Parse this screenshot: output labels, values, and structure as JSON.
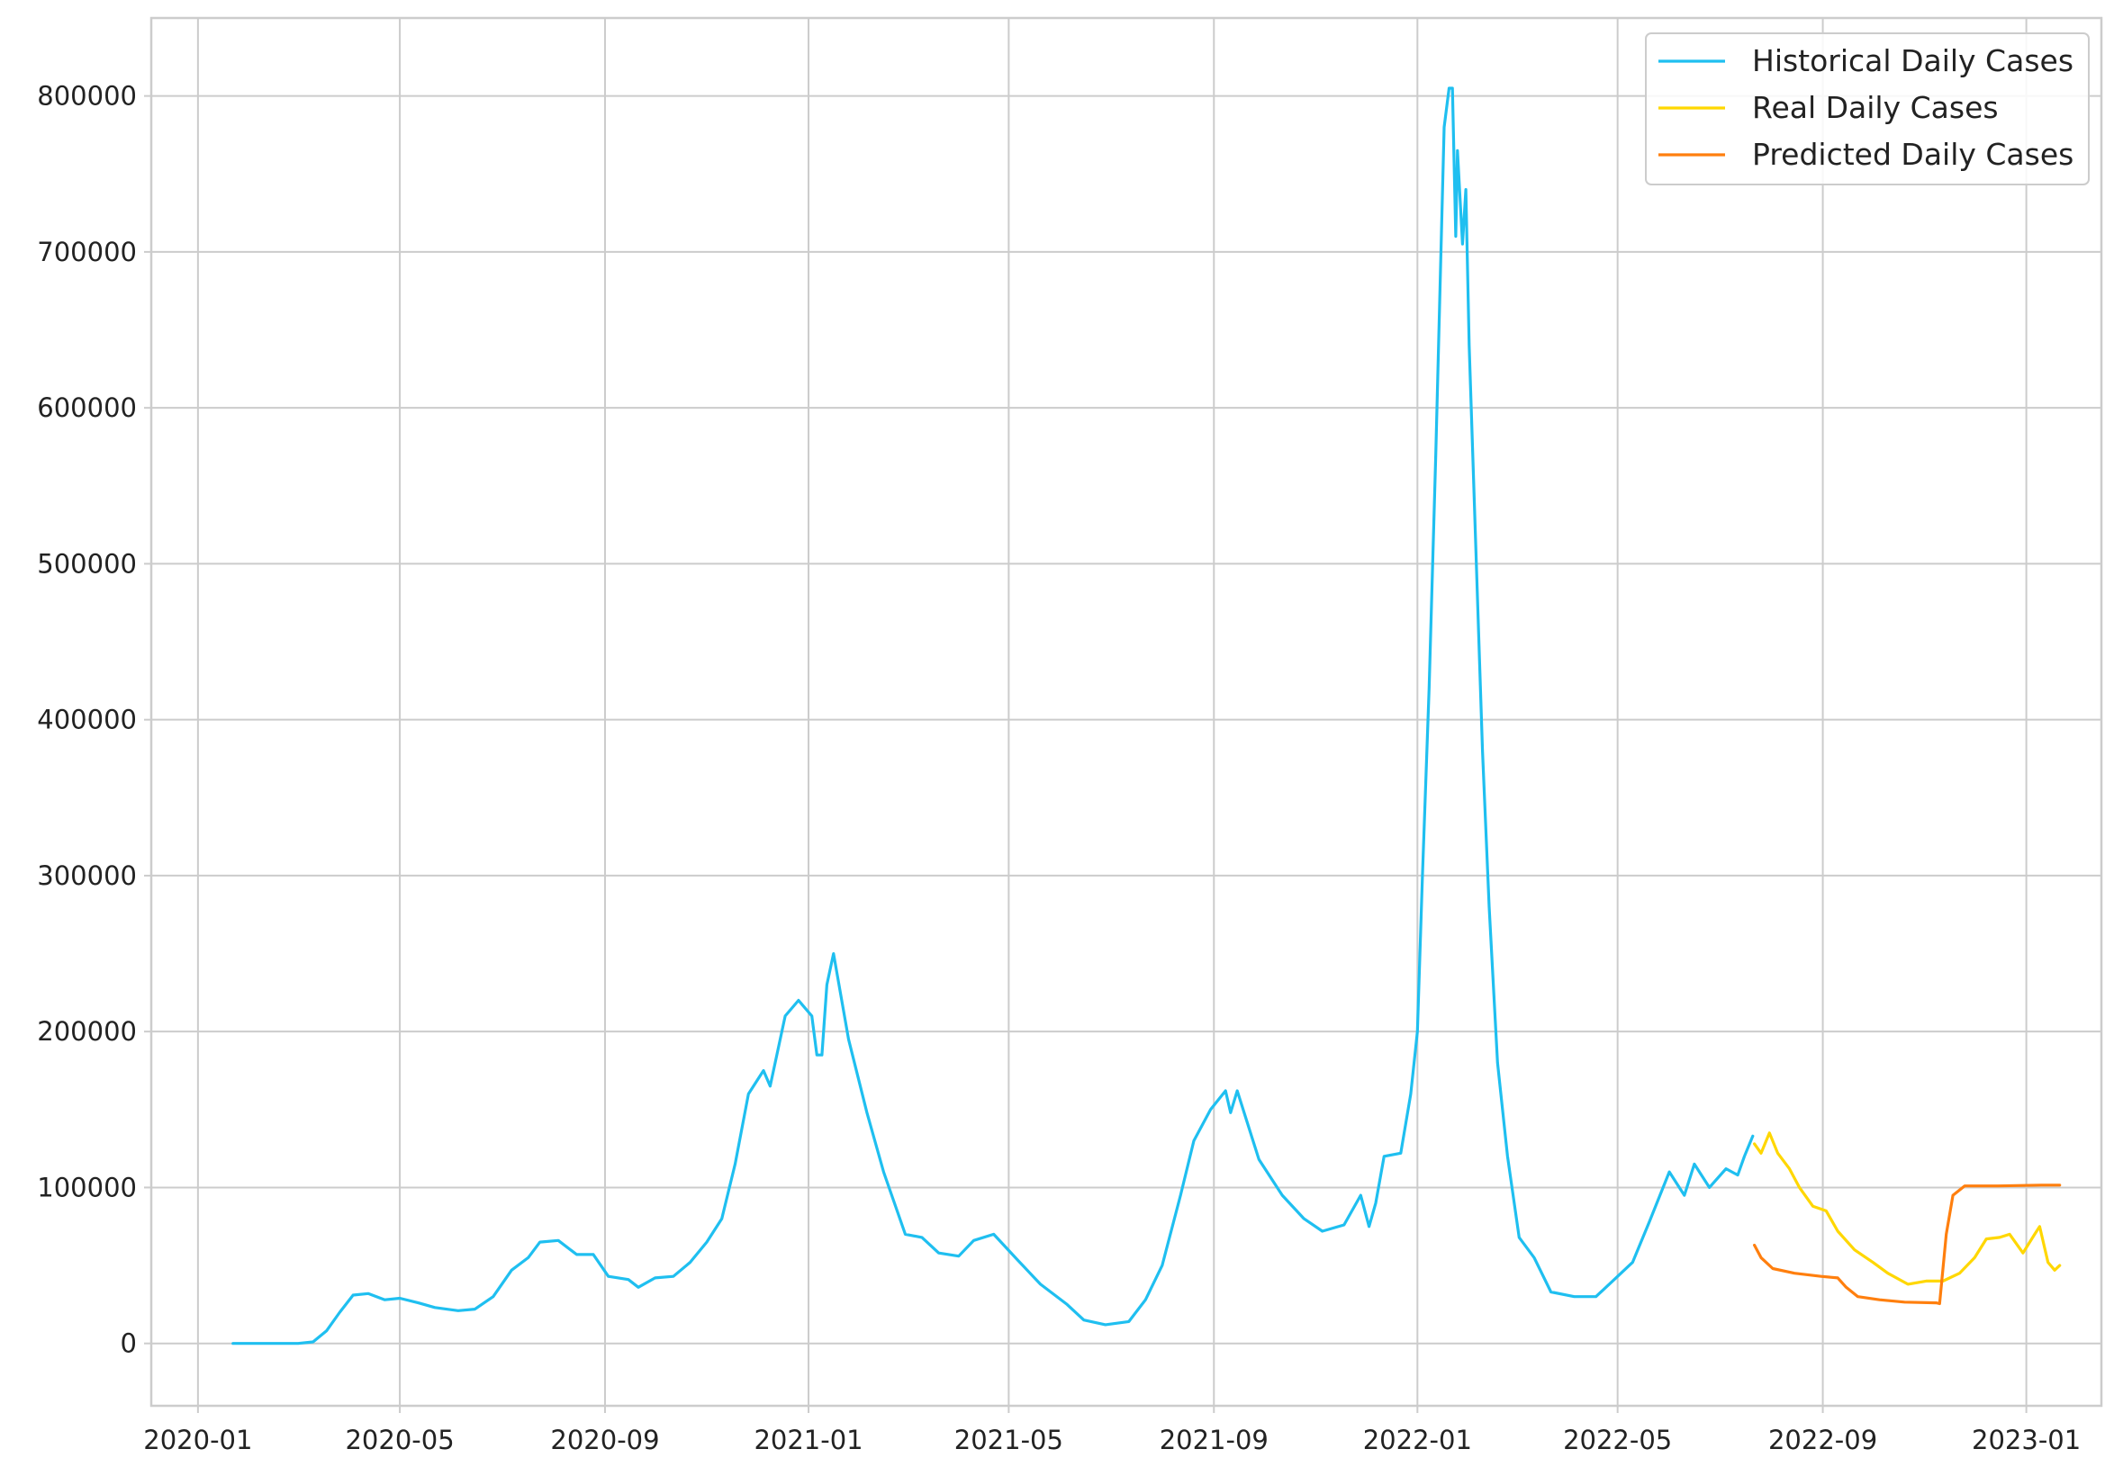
{
  "chart_data": {
    "type": "line",
    "title": "",
    "xlabel": "",
    "ylabel": "",
    "x_type": "date",
    "xlim": [
      "2019-12-04",
      "2023-02-15"
    ],
    "ylim": [
      -40000,
      850000
    ],
    "grid": true,
    "legend_position": "top-right",
    "x_ticks": [
      "2020-01",
      "2020-05",
      "2020-09",
      "2021-01",
      "2021-05",
      "2021-09",
      "2022-01",
      "2022-05",
      "2022-09",
      "2023-01"
    ],
    "y_ticks": [
      0,
      100000,
      200000,
      300000,
      400000,
      500000,
      600000,
      700000,
      800000
    ],
    "y_tick_labels": [
      "0",
      "100000",
      "200000",
      "300000",
      "400000",
      "500000",
      "600000",
      "700000",
      "800000"
    ],
    "series": [
      {
        "name": "Historical Daily Cases",
        "color": "#1fbff0",
        "points": [
          [
            "2020-01-22",
            0
          ],
          [
            "2020-02-15",
            0
          ],
          [
            "2020-03-01",
            0
          ],
          [
            "2020-03-10",
            1000
          ],
          [
            "2020-03-18",
            8000
          ],
          [
            "2020-03-26",
            20000
          ],
          [
            "2020-04-03",
            31000
          ],
          [
            "2020-04-12",
            32000
          ],
          [
            "2020-04-22",
            28000
          ],
          [
            "2020-05-01",
            29000
          ],
          [
            "2020-05-12",
            26000
          ],
          [
            "2020-05-22",
            23000
          ],
          [
            "2020-06-05",
            21000
          ],
          [
            "2020-06-15",
            22000
          ],
          [
            "2020-06-26",
            30000
          ],
          [
            "2020-07-07",
            47000
          ],
          [
            "2020-07-17",
            55000
          ],
          [
            "2020-07-24",
            65000
          ],
          [
            "2020-08-04",
            66000
          ],
          [
            "2020-08-15",
            57000
          ],
          [
            "2020-08-25",
            57000
          ],
          [
            "2020-09-03",
            43000
          ],
          [
            "2020-09-15",
            41000
          ],
          [
            "2020-09-21",
            36000
          ],
          [
            "2020-10-01",
            42000
          ],
          [
            "2020-10-12",
            43000
          ],
          [
            "2020-10-22",
            52000
          ],
          [
            "2020-11-01",
            65000
          ],
          [
            "2020-11-10",
            80000
          ],
          [
            "2020-11-18",
            115000
          ],
          [
            "2020-11-26",
            160000
          ],
          [
            "2020-12-05",
            175000
          ],
          [
            "2020-12-09",
            165000
          ],
          [
            "2020-12-18",
            210000
          ],
          [
            "2020-12-26",
            220000
          ],
          [
            "2021-01-03",
            210000
          ],
          [
            "2021-01-06",
            185000
          ],
          [
            "2021-01-09",
            185000
          ],
          [
            "2021-01-12",
            230000
          ],
          [
            "2021-01-16",
            250000
          ],
          [
            "2021-01-25",
            195000
          ],
          [
            "2021-02-05",
            148000
          ],
          [
            "2021-02-15",
            110000
          ],
          [
            "2021-02-28",
            70000
          ],
          [
            "2021-03-10",
            68000
          ],
          [
            "2021-03-20",
            58000
          ],
          [
            "2021-04-01",
            56000
          ],
          [
            "2021-04-10",
            66000
          ],
          [
            "2021-04-22",
            70000
          ],
          [
            "2021-05-05",
            55000
          ],
          [
            "2021-05-20",
            38000
          ],
          [
            "2021-06-05",
            25000
          ],
          [
            "2021-06-15",
            15000
          ],
          [
            "2021-06-28",
            12000
          ],
          [
            "2021-07-12",
            14000
          ],
          [
            "2021-07-22",
            28000
          ],
          [
            "2021-08-01",
            50000
          ],
          [
            "2021-08-12",
            95000
          ],
          [
            "2021-08-20",
            130000
          ],
          [
            "2021-08-30",
            150000
          ],
          [
            "2021-09-08",
            162000
          ],
          [
            "2021-09-11",
            148000
          ],
          [
            "2021-09-15",
            162000
          ],
          [
            "2021-09-20",
            145000
          ],
          [
            "2021-09-28",
            118000
          ],
          [
            "2021-10-12",
            95000
          ],
          [
            "2021-10-25",
            80000
          ],
          [
            "2021-11-05",
            72000
          ],
          [
            "2021-11-18",
            76000
          ],
          [
            "2021-11-28",
            95000
          ],
          [
            "2021-12-03",
            75000
          ],
          [
            "2021-12-07",
            90000
          ],
          [
            "2021-12-12",
            120000
          ],
          [
            "2021-12-22",
            122000
          ],
          [
            "2021-12-28",
            160000
          ],
          [
            "2022-01-01",
            200000
          ],
          [
            "2022-01-04",
            300000
          ],
          [
            "2022-01-08",
            420000
          ],
          [
            "2022-01-12",
            570000
          ],
          [
            "2022-01-17",
            780000
          ],
          [
            "2022-01-20",
            805000
          ],
          [
            "2022-01-22",
            805000
          ],
          [
            "2022-01-24",
            710000
          ],
          [
            "2022-01-25",
            765000
          ],
          [
            "2022-01-28",
            705000
          ],
          [
            "2022-01-30",
            740000
          ],
          [
            "2022-02-01",
            640000
          ],
          [
            "2022-02-05",
            510000
          ],
          [
            "2022-02-09",
            380000
          ],
          [
            "2022-02-13",
            280000
          ],
          [
            "2022-02-18",
            180000
          ],
          [
            "2022-02-24",
            120000
          ],
          [
            "2022-03-03",
            68000
          ],
          [
            "2022-03-12",
            55000
          ],
          [
            "2022-03-22",
            33000
          ],
          [
            "2022-04-05",
            30000
          ],
          [
            "2022-04-18",
            30000
          ],
          [
            "2022-04-28",
            40000
          ],
          [
            "2022-05-10",
            52000
          ],
          [
            "2022-05-20",
            78000
          ],
          [
            "2022-06-01",
            110000
          ],
          [
            "2022-06-10",
            95000
          ],
          [
            "2022-06-16",
            115000
          ],
          [
            "2022-06-25",
            100000
          ],
          [
            "2022-07-05",
            112000
          ],
          [
            "2022-07-12",
            108000
          ],
          [
            "2022-07-16",
            120000
          ],
          [
            "2022-07-21",
            133000
          ]
        ]
      },
      {
        "name": "Real Daily Cases",
        "color": "#ffd700",
        "points": [
          [
            "2022-07-22",
            128000
          ],
          [
            "2022-07-26",
            122000
          ],
          [
            "2022-07-31",
            135000
          ],
          [
            "2022-08-05",
            122000
          ],
          [
            "2022-08-12",
            112000
          ],
          [
            "2022-08-18",
            100000
          ],
          [
            "2022-08-26",
            88000
          ],
          [
            "2022-09-03",
            85000
          ],
          [
            "2022-09-10",
            72000
          ],
          [
            "2022-09-20",
            60000
          ],
          [
            "2022-10-01",
            52000
          ],
          [
            "2022-10-10",
            45000
          ],
          [
            "2022-10-22",
            38000
          ],
          [
            "2022-11-02",
            40000
          ],
          [
            "2022-11-12",
            40000
          ],
          [
            "2022-11-22",
            45000
          ],
          [
            "2022-12-01",
            55000
          ],
          [
            "2022-12-08",
            67000
          ],
          [
            "2022-12-16",
            68000
          ],
          [
            "2022-12-22",
            70000
          ],
          [
            "2022-12-30",
            58000
          ],
          [
            "2023-01-06",
            70000
          ],
          [
            "2023-01-09",
            75000
          ],
          [
            "2023-01-14",
            52000
          ],
          [
            "2023-01-18",
            47000
          ],
          [
            "2023-01-21",
            50000
          ]
        ]
      },
      {
        "name": "Predicted Daily Cases",
        "color": "#ff7f0e",
        "points": [
          [
            "2022-07-22",
            63000
          ],
          [
            "2022-07-26",
            55000
          ],
          [
            "2022-08-02",
            48000
          ],
          [
            "2022-08-15",
            45000
          ],
          [
            "2022-08-31",
            43000
          ],
          [
            "2022-09-10",
            42000
          ],
          [
            "2022-09-15",
            36000
          ],
          [
            "2022-09-22",
            30000
          ],
          [
            "2022-10-05",
            28000
          ],
          [
            "2022-10-20",
            26500
          ],
          [
            "2022-11-08",
            26000
          ],
          [
            "2022-11-10",
            25500
          ],
          [
            "2022-11-14",
            70000
          ],
          [
            "2022-11-18",
            95000
          ],
          [
            "2022-11-25",
            101000
          ],
          [
            "2022-12-15",
            101000
          ],
          [
            "2023-01-10",
            101500
          ],
          [
            "2023-01-21",
            101500
          ]
        ]
      }
    ]
  }
}
